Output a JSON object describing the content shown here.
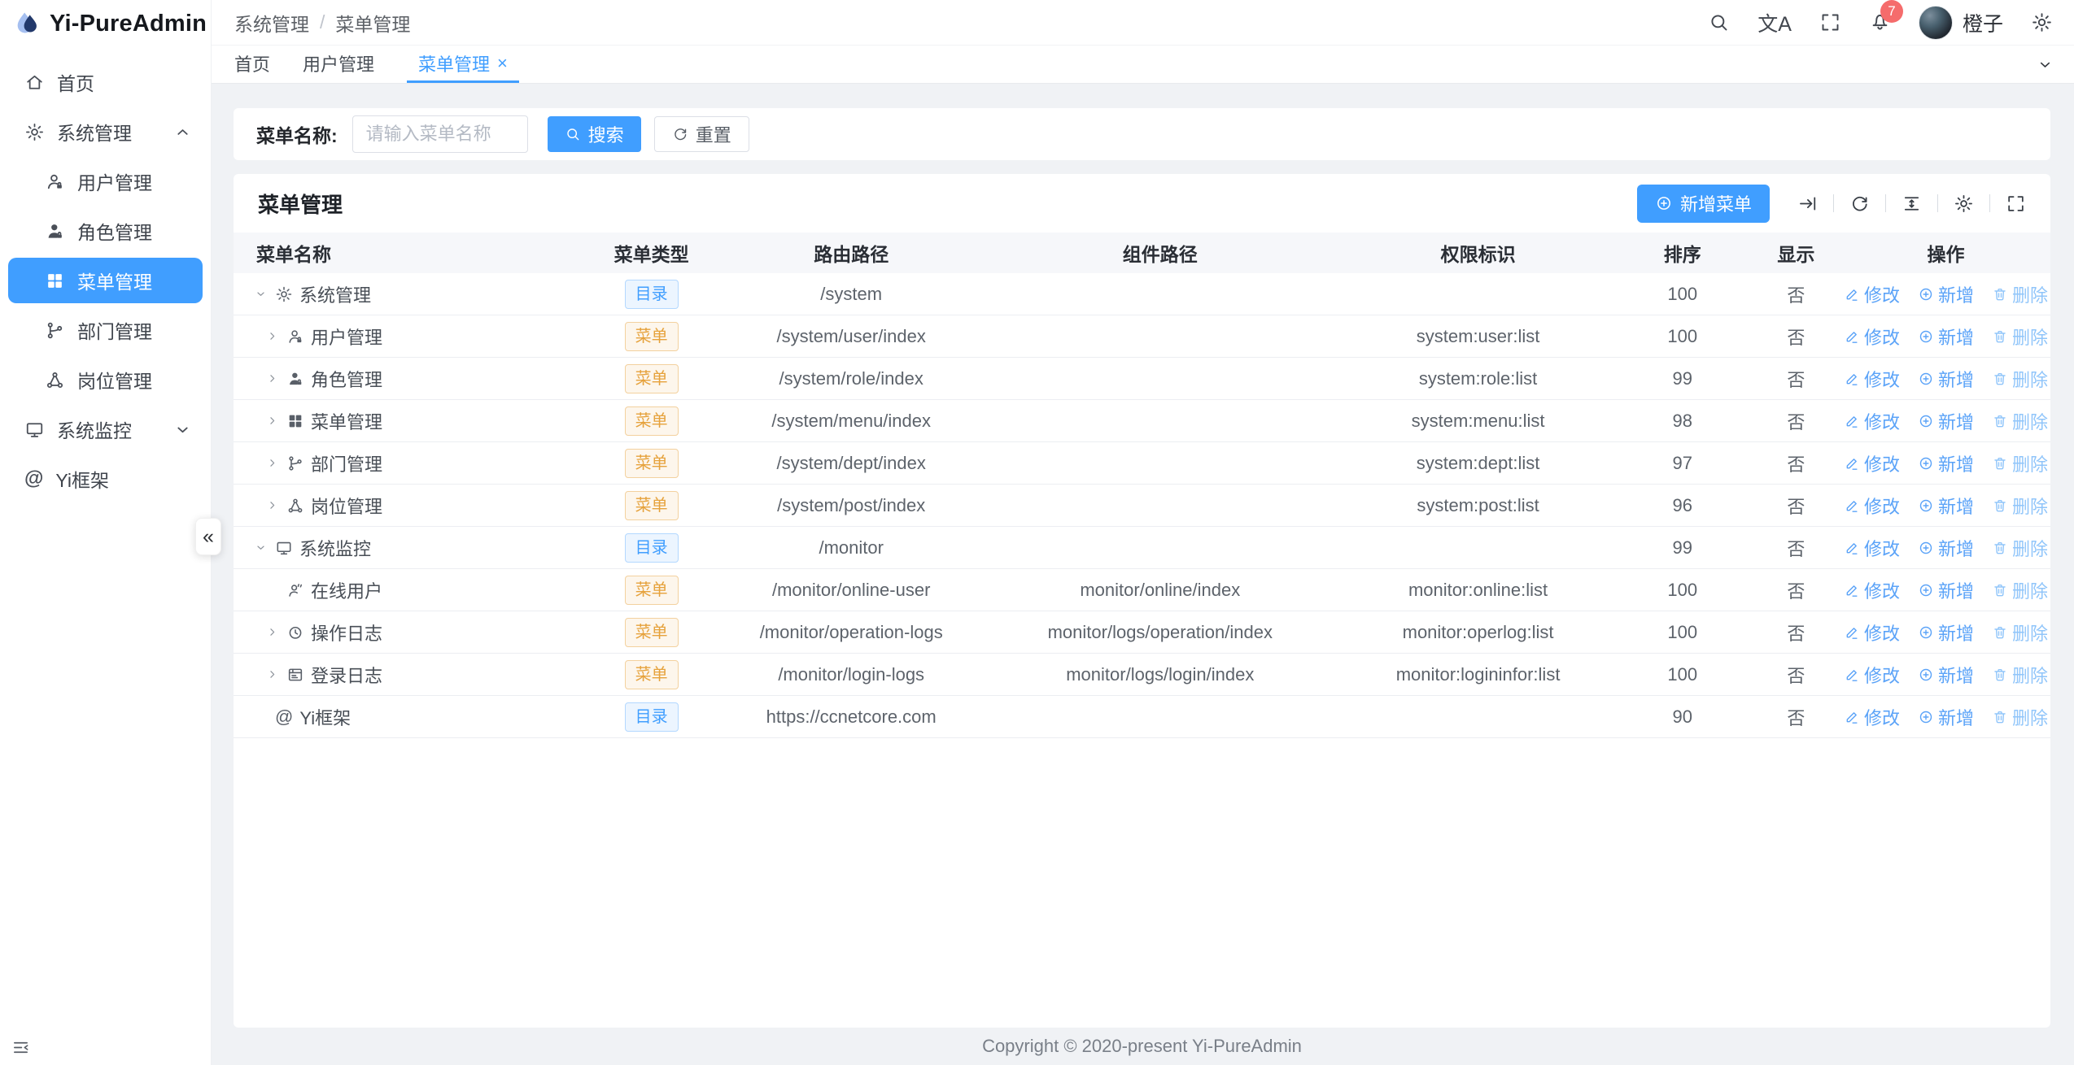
{
  "app": {
    "title": "Yi-PureAdmin",
    "copyright": "Copyright © 2020-present Yi-PureAdmin"
  },
  "colors": {
    "primary": "#409eff",
    "badge_dir": "#409eff",
    "badge_menu": "#e6a23c",
    "notification_badge": "#f56c6c"
  },
  "sidebar": {
    "collapse_label": "«",
    "items": [
      {
        "label": "首页",
        "icon": "home",
        "level": 0
      },
      {
        "label": "系统管理",
        "icon": "gear",
        "level": 0,
        "chevron": "up"
      },
      {
        "label": "用户管理",
        "icon": "user",
        "level": 1
      },
      {
        "label": "角色管理",
        "icon": "role",
        "level": 1
      },
      {
        "label": "菜单管理",
        "icon": "grid",
        "level": 1,
        "active": true
      },
      {
        "label": "部门管理",
        "icon": "dept",
        "level": 1
      },
      {
        "label": "岗位管理",
        "icon": "post",
        "level": 1
      },
      {
        "label": "系统监控",
        "icon": "monitor",
        "level": 0,
        "chevron": "down"
      },
      {
        "label": "Yi框架",
        "icon": "at",
        "level": 0
      }
    ]
  },
  "header": {
    "breadcrumb": [
      "系统管理",
      "菜单管理"
    ],
    "translate_icon_text": "文A",
    "bell_badge": "7",
    "user_name": "橙子"
  },
  "tabs": [
    {
      "label": "首页"
    },
    {
      "label": "用户管理"
    },
    {
      "label": "菜单管理",
      "active": true,
      "closable": true
    }
  ],
  "search": {
    "label": "菜单名称:",
    "placeholder": "请输入菜单名称",
    "search_label": "搜索",
    "reset_label": "重置"
  },
  "table_card": {
    "title": "菜单管理",
    "add_label": "新增菜单"
  },
  "table": {
    "columns": [
      "菜单名称",
      "菜单类型",
      "路由路径",
      "组件路径",
      "权限标识",
      "排序",
      "显示",
      "操作"
    ],
    "badge_types": {
      "dir": "目录",
      "menu": "菜单"
    },
    "actions": {
      "edit": "修改",
      "add": "新增",
      "delete": "删除"
    },
    "rows": [
      {
        "name": "系统管理",
        "icon": "gear",
        "level": 0,
        "expand": "down",
        "type": "dir",
        "route": "/system",
        "component": "",
        "perm": "",
        "sort": "100",
        "visible": "否"
      },
      {
        "name": "用户管理",
        "icon": "user",
        "level": 1,
        "expand": "right",
        "type": "menu",
        "route": "/system/user/index",
        "component": "",
        "perm": "system:user:list",
        "sort": "100",
        "visible": "否"
      },
      {
        "name": "角色管理",
        "icon": "role",
        "level": 1,
        "expand": "right",
        "type": "menu",
        "route": "/system/role/index",
        "component": "",
        "perm": "system:role:list",
        "sort": "99",
        "visible": "否"
      },
      {
        "name": "菜单管理",
        "icon": "grid",
        "level": 1,
        "expand": "right",
        "type": "menu",
        "route": "/system/menu/index",
        "component": "",
        "perm": "system:menu:list",
        "sort": "98",
        "visible": "否"
      },
      {
        "name": "部门管理",
        "icon": "dept",
        "level": 1,
        "expand": "right",
        "type": "menu",
        "route": "/system/dept/index",
        "component": "",
        "perm": "system:dept:list",
        "sort": "97",
        "visible": "否"
      },
      {
        "name": "岗位管理",
        "icon": "post",
        "level": 1,
        "expand": "right",
        "type": "menu",
        "route": "/system/post/index",
        "component": "",
        "perm": "system:post:list",
        "sort": "96",
        "visible": "否"
      },
      {
        "name": "系统监控",
        "icon": "monitor",
        "level": 0,
        "expand": "down",
        "type": "dir",
        "route": "/monitor",
        "component": "",
        "perm": "",
        "sort": "99",
        "visible": "否"
      },
      {
        "name": "在线用户",
        "icon": "online",
        "level": 1,
        "expand": "none",
        "type": "menu",
        "route": "/monitor/online-user",
        "component": "monitor/online/index",
        "perm": "monitor:online:list",
        "sort": "100",
        "visible": "否"
      },
      {
        "name": "操作日志",
        "icon": "clock",
        "level": 1,
        "expand": "right",
        "type": "menu",
        "route": "/monitor/operation-logs",
        "component": "monitor/logs/operation/index",
        "perm": "monitor:operlog:list",
        "sort": "100",
        "visible": "否"
      },
      {
        "name": "登录日志",
        "icon": "loginlog",
        "level": 1,
        "expand": "right",
        "type": "menu",
        "route": "/monitor/login-logs",
        "component": "monitor/logs/login/index",
        "perm": "monitor:logininfor:list",
        "sort": "100",
        "visible": "否"
      },
      {
        "name": "Yi框架",
        "icon": "at",
        "level": 0,
        "expand": "none",
        "type": "dir",
        "route": "https://ccnetcore.com",
        "component": "",
        "perm": "",
        "sort": "90",
        "visible": "否"
      }
    ]
  }
}
